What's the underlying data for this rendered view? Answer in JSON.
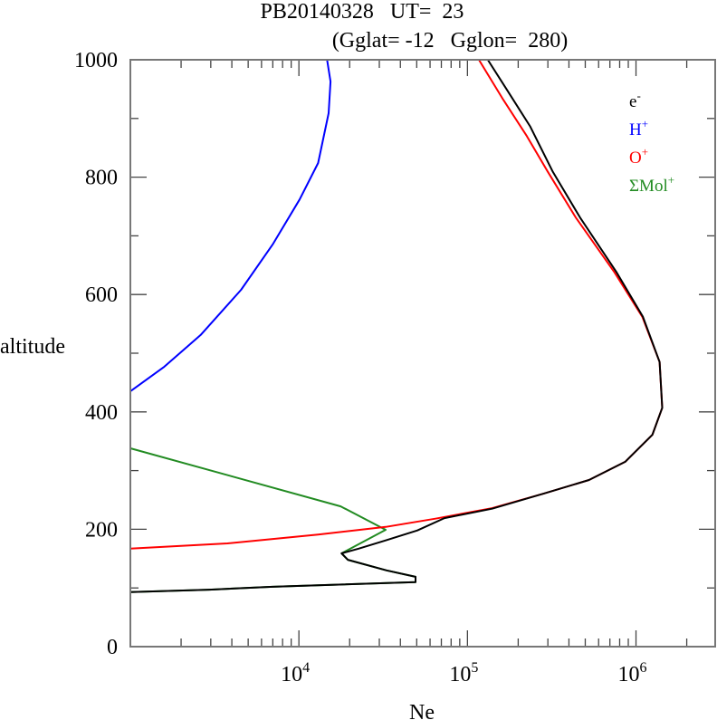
{
  "chart_data": {
    "type": "line",
    "title": "PB20140328   UT=  23",
    "subtitle": "(Gglat= -12   Gglon=  280)",
    "xlabel": "Ne",
    "ylabel": "altitude",
    "xscale": "log",
    "xlim": [
      1000,
      2950000
    ],
    "ylim": [
      0,
      1000
    ],
    "x_ticks": [
      {
        "value": 10000,
        "base": "10",
        "exp": "4"
      },
      {
        "value": 100000,
        "base": "10",
        "exp": "5"
      },
      {
        "value": 1000000,
        "base": "10",
        "exp": "6"
      }
    ],
    "y_ticks": [
      {
        "value": 0,
        "label": "0"
      },
      {
        "value": 200,
        "label": "200"
      },
      {
        "value": 400,
        "label": "400"
      },
      {
        "value": 600,
        "label": "600"
      },
      {
        "value": 800,
        "label": "800"
      },
      {
        "value": 1000,
        "label": "1000"
      }
    ],
    "legend_position": "top-right",
    "series": [
      {
        "name": "e-",
        "base": "e",
        "sup": "-",
        "color": "#000000",
        "points": [
          [
            132000,
            1000
          ],
          [
            173000,
            947
          ],
          [
            236000,
            886
          ],
          [
            321000,
            809
          ],
          [
            466000,
            731
          ],
          [
            762000,
            639
          ],
          [
            1100000,
            562
          ],
          [
            1380000,
            485
          ],
          [
            1430000,
            407
          ],
          [
            1250000,
            361
          ],
          [
            863000,
            315
          ],
          [
            526000,
            284
          ],
          [
            284000,
            261
          ],
          [
            140000,
            235
          ],
          [
            73000,
            219
          ],
          [
            50400,
            198
          ],
          [
            32700,
            181
          ],
          [
            22600,
            167
          ],
          [
            17900,
            159
          ],
          [
            19500,
            148
          ],
          [
            33100,
            130
          ],
          [
            49200,
            119
          ],
          [
            49200,
            110
          ],
          [
            6980,
            102
          ],
          [
            2940,
            97
          ],
          [
            1000,
            93
          ]
        ]
      },
      {
        "name": "H+",
        "base": "H",
        "sup": "+",
        "color": "#0000ff",
        "points": [
          [
            1000,
            435
          ],
          [
            1590,
            477
          ],
          [
            2610,
            531
          ],
          [
            4540,
            608
          ],
          [
            6980,
            685
          ],
          [
            10100,
            762
          ],
          [
            13000,
            824
          ],
          [
            15000,
            909
          ],
          [
            15400,
            963
          ],
          [
            14700,
            1000
          ]
        ]
      },
      {
        "name": "O+",
        "base": "O",
        "sup": "+",
        "color": "#ff0000",
        "points": [
          [
            1000,
            167
          ],
          [
            3770,
            176
          ],
          [
            13000,
            191
          ],
          [
            32700,
            204
          ],
          [
            64600,
            218
          ],
          [
            140000,
            236
          ],
          [
            284000,
            261
          ],
          [
            526000,
            284
          ],
          [
            863000,
            315
          ],
          [
            1250000,
            361
          ],
          [
            1430000,
            407
          ],
          [
            1380000,
            485
          ],
          [
            1090000,
            562
          ],
          [
            740000,
            639
          ],
          [
            440000,
            731
          ],
          [
            300000,
            809
          ],
          [
            225000,
            870
          ],
          [
            163000,
            932
          ],
          [
            117000,
            1000
          ]
        ]
      },
      {
        "name": "ΣMol+",
        "base": "ΣMol",
        "sup": "+",
        "color": "#228b22",
        "points": [
          [
            1000,
            338
          ],
          [
            17700,
            239
          ],
          [
            32700,
            199
          ],
          [
            17900,
            159
          ],
          [
            19500,
            148
          ],
          [
            33100,
            130
          ],
          [
            49200,
            119
          ],
          [
            49200,
            110
          ],
          [
            6980,
            102
          ],
          [
            2940,
            97
          ],
          [
            1000,
            93
          ]
        ]
      }
    ]
  }
}
